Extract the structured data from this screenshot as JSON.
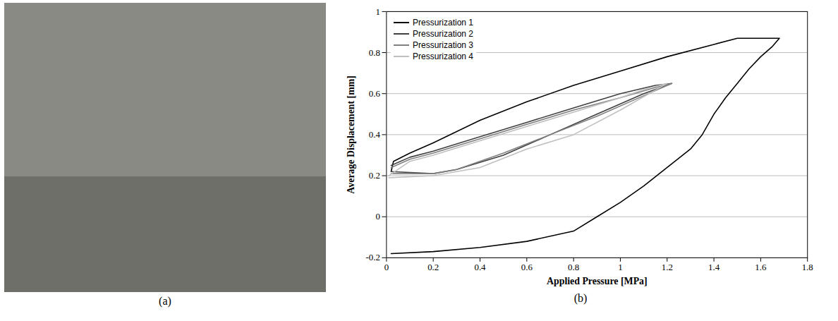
{
  "chart_data": [
    {
      "type": "image",
      "caption": "(a)"
    },
    {
      "type": "line",
      "caption": "(b)",
      "x_label": "Applied Pressure [MPa]",
      "y_label": "Average Displacement [mm]",
      "xlim": [
        0,
        1.8
      ],
      "xticks": [
        0,
        0.2,
        0.4,
        0.6,
        0.8,
        1,
        1.2,
        1.4,
        1.6,
        1.8
      ],
      "ylim": [
        -0.2,
        1
      ],
      "yticks": [
        -0.2,
        0,
        0.2,
        0.4,
        0.6,
        0.8,
        1
      ],
      "grid": "y",
      "legend": "top-left",
      "series": [
        {
          "name": "Pressurization 1",
          "color": "#000000",
          "x": [
            0.02,
            0.2,
            0.4,
            0.6,
            0.8,
            0.9,
            1.0,
            1.1,
            1.2,
            1.3,
            1.35,
            1.4,
            1.45,
            1.5,
            1.55,
            1.6,
            1.65,
            1.68,
            1.5,
            1.4,
            1.2,
            1.0,
            0.8,
            0.6,
            0.4,
            0.2,
            0.1,
            0.03,
            0.02
          ],
          "values": [
            -0.18,
            -0.17,
            -0.15,
            -0.12,
            -0.07,
            0.0,
            0.07,
            0.15,
            0.24,
            0.33,
            0.4,
            0.5,
            0.58,
            0.65,
            0.72,
            0.78,
            0.83,
            0.87,
            0.87,
            0.84,
            0.78,
            0.71,
            0.64,
            0.56,
            0.47,
            0.36,
            0.31,
            0.27,
            0.22
          ]
        },
        {
          "name": "Pressurization 2",
          "color": "#404040",
          "x": [
            0.02,
            0.2,
            0.3,
            0.5,
            0.7,
            0.9,
            1.1,
            1.22,
            1.15,
            1.0,
            0.8,
            0.6,
            0.4,
            0.2,
            0.1,
            0.02
          ],
          "values": [
            0.22,
            0.21,
            0.23,
            0.3,
            0.4,
            0.5,
            0.6,
            0.65,
            0.64,
            0.6,
            0.53,
            0.46,
            0.39,
            0.32,
            0.29,
            0.25
          ]
        },
        {
          "name": "Pressurization 3",
          "color": "#808080",
          "x": [
            0.02,
            0.2,
            0.3,
            0.5,
            0.7,
            0.9,
            1.1,
            1.22,
            1.15,
            1.0,
            0.8,
            0.6,
            0.4,
            0.2,
            0.1,
            0.02
          ],
          "values": [
            0.21,
            0.21,
            0.23,
            0.31,
            0.4,
            0.49,
            0.59,
            0.65,
            0.63,
            0.58,
            0.52,
            0.45,
            0.38,
            0.31,
            0.28,
            0.24
          ]
        },
        {
          "name": "Pressurization 4",
          "color": "#c0c0c0",
          "x": [
            0.01,
            0.2,
            0.4,
            0.6,
            0.8,
            1.0,
            1.2,
            1.1,
            1.0,
            0.8,
            0.6,
            0.4,
            0.2,
            0.1,
            0.01
          ],
          "values": [
            0.19,
            0.2,
            0.24,
            0.33,
            0.4,
            0.52,
            0.65,
            0.62,
            0.58,
            0.51,
            0.44,
            0.37,
            0.3,
            0.27,
            0.2
          ]
        }
      ]
    }
  ]
}
